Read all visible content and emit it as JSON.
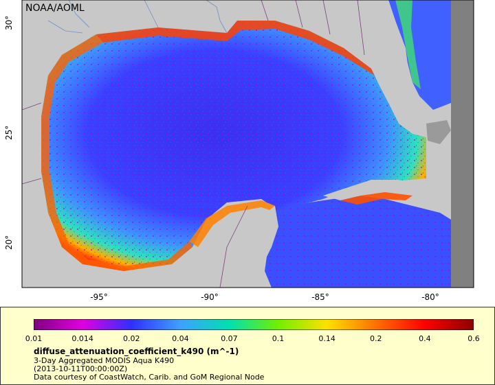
{
  "credit": "NOAA/AOML",
  "map": {
    "lat_ticks": [
      "30°",
      "25°",
      "20°"
    ],
    "lon_ticks": [
      "-95°",
      "-90°",
      "-85°",
      "-80°"
    ],
    "colors": {
      "land": "#c8c8c8",
      "nodata": "#808080",
      "border": "#7f3f7f",
      "river": "#6e8fc7"
    }
  },
  "legend": {
    "ticks": [
      "0.01",
      "0.014",
      "0.02",
      "0.04",
      "0.07",
      "0.1",
      "0.14",
      "0.2",
      "0.4",
      "0.6"
    ],
    "colors": [
      "#800080",
      "#e000e0",
      "#3030ff",
      "#3fa0ff",
      "#00e0b0",
      "#70f000",
      "#ffe000",
      "#ff7000",
      "#ff0000",
      "#8b0000"
    ],
    "variable": "diffuse_attenuation_coefficient_k490 (m^-1)",
    "line2": "3-Day Aggregated MODIS Aqua K490",
    "line3": "(2013-10-11T00:00:00Z)",
    "line4": "Data courtesy of CoastWatch, Carib. and GoM Regional Node"
  }
}
